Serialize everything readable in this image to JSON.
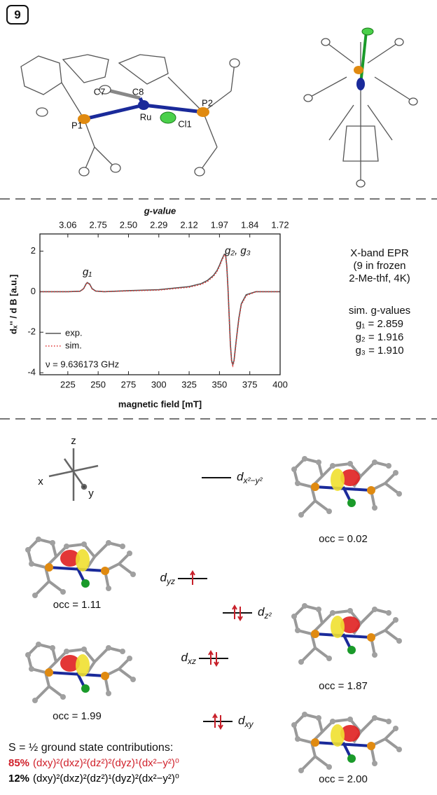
{
  "panel_label": "9",
  "atom_labels": [
    "C7",
    "C8",
    "P1",
    "Ru",
    "Cl1",
    "P2"
  ],
  "chart_data": {
    "type": "line",
    "top_axis_title": "g-value",
    "x_label": "magnetic field [mT]",
    "y_label": "dₓ'' / d B [a.u.]",
    "xlim": [
      202,
      400
    ],
    "ylim": [
      -4.1,
      2.85
    ],
    "xticks": [
      225,
      250,
      275,
      300,
      325,
      350,
      375,
      400
    ],
    "yticks": [
      -4,
      -2,
      0,
      2
    ],
    "top_ticks": [
      {
        "value": 225,
        "label": "3.06"
      },
      {
        "value": 250,
        "label": "2.75"
      },
      {
        "value": 275,
        "label": "2.50"
      },
      {
        "value": 300,
        "label": "2.29"
      },
      {
        "value": 325,
        "label": "2.12"
      },
      {
        "value": 350,
        "label": "1.97"
      },
      {
        "value": 375,
        "label": "1.84"
      },
      {
        "value": 400,
        "label": "1.72"
      }
    ],
    "x": [
      202,
      225,
      235,
      238,
      240,
      241,
      243,
      245,
      248,
      255,
      275,
      300,
      325,
      335,
      340,
      345,
      348,
      350,
      352,
      354,
      355,
      356,
      357,
      358,
      359,
      360,
      361,
      362,
      364,
      366,
      368,
      372,
      380,
      400
    ],
    "series": [
      {
        "name": "exp.",
        "color": "#555555",
        "values": [
          0,
          0,
          0.02,
          0.15,
          0.38,
          0.45,
          0.38,
          0.15,
          0.03,
          0,
          0.05,
          0.1,
          0.25,
          0.4,
          0.55,
          0.8,
          1.05,
          1.3,
          1.6,
          1.85,
          1.85,
          1.3,
          0.2,
          -1.2,
          -2.6,
          -3.4,
          -3.6,
          -3.4,
          -2.3,
          -1.3,
          -0.6,
          -0.15,
          0,
          0
        ]
      },
      {
        "name": "sim.",
        "color": "#e03030",
        "values": [
          0,
          0,
          0.02,
          0.14,
          0.36,
          0.43,
          0.36,
          0.14,
          0.03,
          0,
          0.04,
          0.08,
          0.22,
          0.36,
          0.5,
          0.75,
          1.0,
          1.25,
          1.55,
          1.8,
          1.8,
          1.25,
          0.15,
          -1.25,
          -2.65,
          -3.45,
          -3.65,
          -3.45,
          -2.35,
          -1.35,
          -0.65,
          -0.2,
          0,
          0
        ]
      }
    ],
    "annotations": [
      {
        "text": "g₁",
        "x": 241,
        "y": 0.95
      },
      {
        "text": "g₂, g₃",
        "x": 365,
        "y": 2.0
      }
    ],
    "frequency": "ν = 9.636173 GHz",
    "legend": "lower left"
  },
  "side_text": {
    "method": [
      "X-band EPR",
      "(9 in frozen",
      "2-Me-thf, 4K)"
    ],
    "sim_title": "sim. g-values",
    "sim_values": [
      "g₁ = 2.859",
      "g₂ = 1.916",
      "g₃ = 1.910"
    ]
  },
  "axes_labels": [
    "z",
    "x",
    "y"
  ],
  "orbitals": [
    {
      "symbol": "d",
      "sub": "x²−y²",
      "electrons": 0,
      "occ": "occ = 0.02"
    },
    {
      "symbol": "d",
      "sub": "yz",
      "electrons": 1,
      "occ": "occ = 1.11"
    },
    {
      "symbol": "d",
      "sub": "z²",
      "electrons": 2,
      "occ": "occ = 1.87"
    },
    {
      "symbol": "d",
      "sub": "xz",
      "electrons": 2,
      "occ": "occ = 1.99"
    },
    {
      "symbol": "d",
      "sub": "xy",
      "electrons": 2,
      "occ": "occ = 2.00"
    }
  ],
  "ground_state": "S = ½ ground state contributions:",
  "contributions": [
    {
      "percent": "85%",
      "config": "(dxy)²(dxz)²(dz²)²(dyz)¹(dx²−y²)⁰",
      "color": "#d0202a"
    },
    {
      "percent": "12%",
      "config": "(dxy)²(dxz)²(dz²)¹(dyz)²(dx²−y²)⁰",
      "color": "#000000"
    }
  ]
}
